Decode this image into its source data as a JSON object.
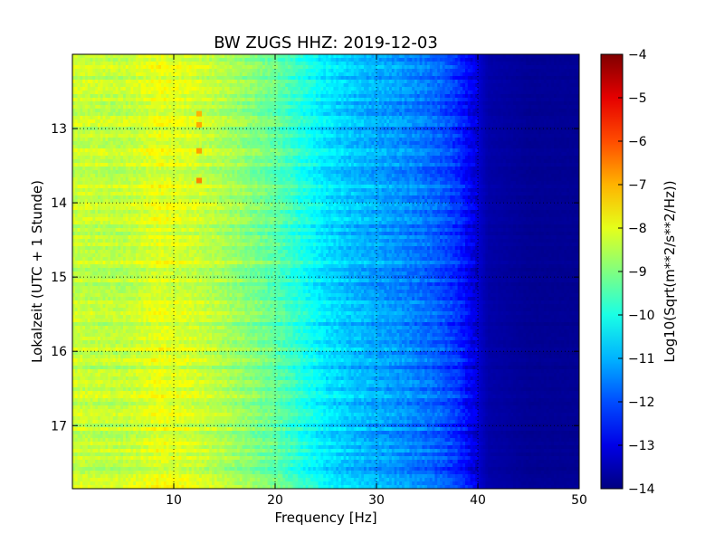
{
  "chart_data": {
    "type": "heatmap",
    "title": "BW ZUGS HHZ: 2019-12-03",
    "xlabel": "Frequency [Hz]",
    "ylabel": "Lokalzeit (UTC + 1 Stunde)",
    "xlim": [
      0,
      50
    ],
    "ylim": [
      17.85,
      12.0
    ],
    "xticks": [
      10,
      20,
      30,
      40,
      50
    ],
    "yticks": [
      13,
      14,
      15,
      16,
      17
    ],
    "grid": true,
    "colormap": "jet",
    "colorbar": {
      "label": "Log10(Sqrt(m**2/s**2/Hz))",
      "min": -14,
      "max": -4,
      "ticks": [
        -4,
        -5,
        -6,
        -7,
        -8,
        -9,
        -10,
        -11,
        -12,
        -13,
        -14
      ]
    },
    "frequency_profile": {
      "x": [
        0,
        5,
        8.5,
        12,
        16,
        20,
        22,
        25,
        28,
        30,
        33,
        36,
        38,
        39.5,
        41,
        45,
        50
      ],
      "values": [
        -8.3,
        -8.4,
        -8.0,
        -8.2,
        -8.7,
        -9.3,
        -9.8,
        -10.5,
        -10.9,
        -11.1,
        -11.4,
        -11.8,
        -12.3,
        -13.0,
        -13.6,
        -13.8,
        -13.8
      ]
    },
    "features": [
      {
        "x": 12.5,
        "y": 13.7,
        "value": -6.5,
        "note": ""
      },
      {
        "x": 12.5,
        "y": 13.3,
        "value": -6.8,
        "note": ""
      },
      {
        "x": 12.5,
        "y": 12.95,
        "value": -6.9,
        "note": ""
      },
      {
        "x": 12.5,
        "y": 12.8,
        "value": -7.0,
        "note": ""
      }
    ]
  }
}
